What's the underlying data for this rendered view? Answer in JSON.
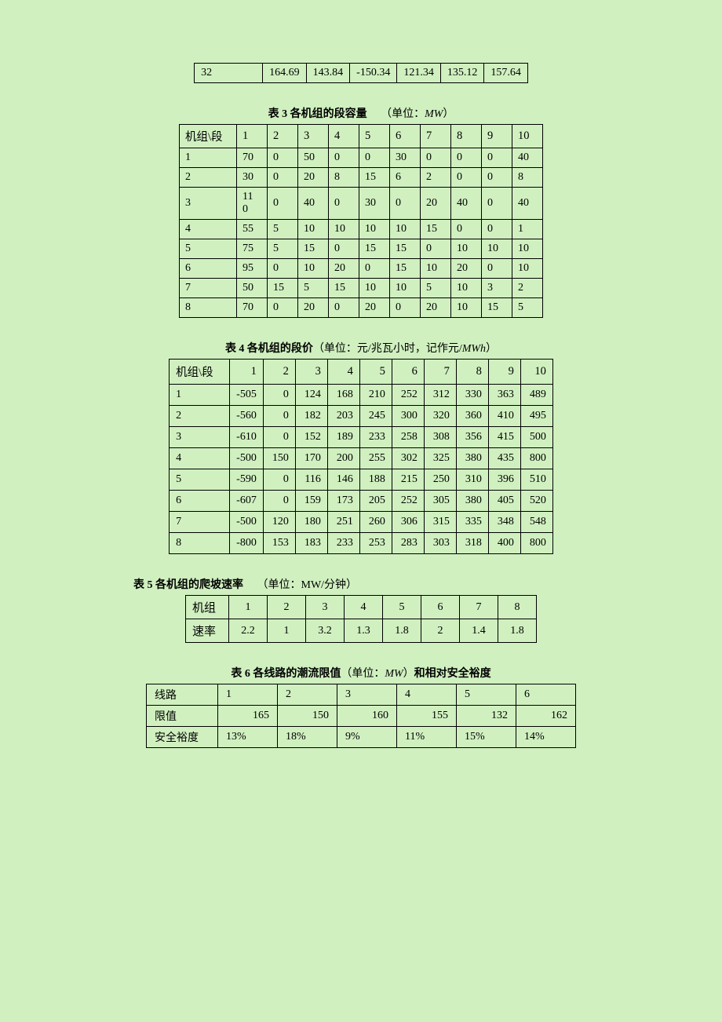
{
  "top_table": {
    "row": [
      "32",
      "164.69",
      "143.84",
      "-150.34",
      "121.34",
      "135.12",
      "157.64"
    ]
  },
  "table3": {
    "caption_bold": "表 3   各机组的段容量",
    "caption_unit_prefix": "（单位：",
    "caption_unit_italic": "MW",
    "caption_unit_suffix": "）",
    "header": [
      "机组\\段",
      "1",
      "2",
      "3",
      "4",
      "5",
      "6",
      "7",
      "8",
      "9",
      "10"
    ],
    "rows": [
      [
        "1",
        "70",
        "0",
        "50",
        "0",
        "0",
        "30",
        "0",
        "0",
        "0",
        "40"
      ],
      [
        "2",
        "30",
        "0",
        "20",
        "8",
        "15",
        "6",
        "2",
        "0",
        "0",
        "8"
      ],
      [
        "3",
        "110",
        "0",
        "40",
        "0",
        "30",
        "0",
        "20",
        "40",
        "0",
        "40"
      ],
      [
        "4",
        "55",
        "5",
        "10",
        "10",
        "10",
        "10",
        "15",
        "0",
        "0",
        "1"
      ],
      [
        "5",
        "75",
        "5",
        "15",
        "0",
        "15",
        "15",
        "0",
        "10",
        "10",
        "10"
      ],
      [
        "6",
        "95",
        "0",
        "10",
        "20",
        "0",
        "15",
        "10",
        "20",
        "0",
        "10"
      ],
      [
        "7",
        "50",
        "15",
        "5",
        "15",
        "10",
        "10",
        "5",
        "10",
        "3",
        "2"
      ],
      [
        "8",
        "70",
        "0",
        "20",
        "0",
        "20",
        "0",
        "20",
        "10",
        "15",
        "5"
      ]
    ]
  },
  "table4": {
    "caption_bold": "表 4   各机组的段价",
    "caption_rest": "（单位：元/兆瓦小时，记作元/",
    "caption_italic": "MWh",
    "caption_suffix": "）",
    "header": [
      "机组\\段",
      "1",
      "2",
      "3",
      "4",
      "5",
      "6",
      "7",
      "8",
      "9",
      "10"
    ],
    "rows": [
      [
        "1",
        "-505",
        "0",
        "124",
        "168",
        "210",
        "252",
        "312",
        "330",
        "363",
        "489"
      ],
      [
        "2",
        "-560",
        "0",
        "182",
        "203",
        "245",
        "300",
        "320",
        "360",
        "410",
        "495"
      ],
      [
        "3",
        "-610",
        "0",
        "152",
        "189",
        "233",
        "258",
        "308",
        "356",
        "415",
        "500"
      ],
      [
        "4",
        "-500",
        "150",
        "170",
        "200",
        "255",
        "302",
        "325",
        "380",
        "435",
        "800"
      ],
      [
        "5",
        "-590",
        "0",
        "116",
        "146",
        "188",
        "215",
        "250",
        "310",
        "396",
        "510"
      ],
      [
        "6",
        "-607",
        "0",
        "159",
        "173",
        "205",
        "252",
        "305",
        "380",
        "405",
        "520"
      ],
      [
        "7",
        "-500",
        "120",
        "180",
        "251",
        "260",
        "306",
        "315",
        "335",
        "348",
        "548"
      ],
      [
        "8",
        "-800",
        "153",
        "183",
        "233",
        "253",
        "283",
        "303",
        "318",
        "400",
        "800"
      ]
    ]
  },
  "table5": {
    "caption_bold": "表 5   各机组的爬坡速率",
    "caption_unit": "（单位：MW/分钟）",
    "row_labels": [
      "机组",
      "速率"
    ],
    "cols": [
      "1",
      "2",
      "3",
      "4",
      "5",
      "6",
      "7",
      "8"
    ],
    "values": [
      "2.2",
      "1",
      "3.2",
      "1.3",
      "1.8",
      "2",
      "1.4",
      "1.8"
    ]
  },
  "table6": {
    "caption_bold": "表 6   各线路的潮流限值",
    "caption_rest1": "（单位：",
    "caption_italic": "MW",
    "caption_rest2": "）",
    "caption_bold2": "和相对安全裕度",
    "row_labels": [
      "线路",
      "限值",
      "安全裕度"
    ],
    "cols": [
      "1",
      "2",
      "3",
      "4",
      "5",
      "6"
    ],
    "limits": [
      "165",
      "150",
      "160",
      "155",
      "132",
      "162"
    ],
    "margins": [
      "13%",
      "18%",
      "9%",
      "11%",
      "15%",
      "14%"
    ]
  }
}
